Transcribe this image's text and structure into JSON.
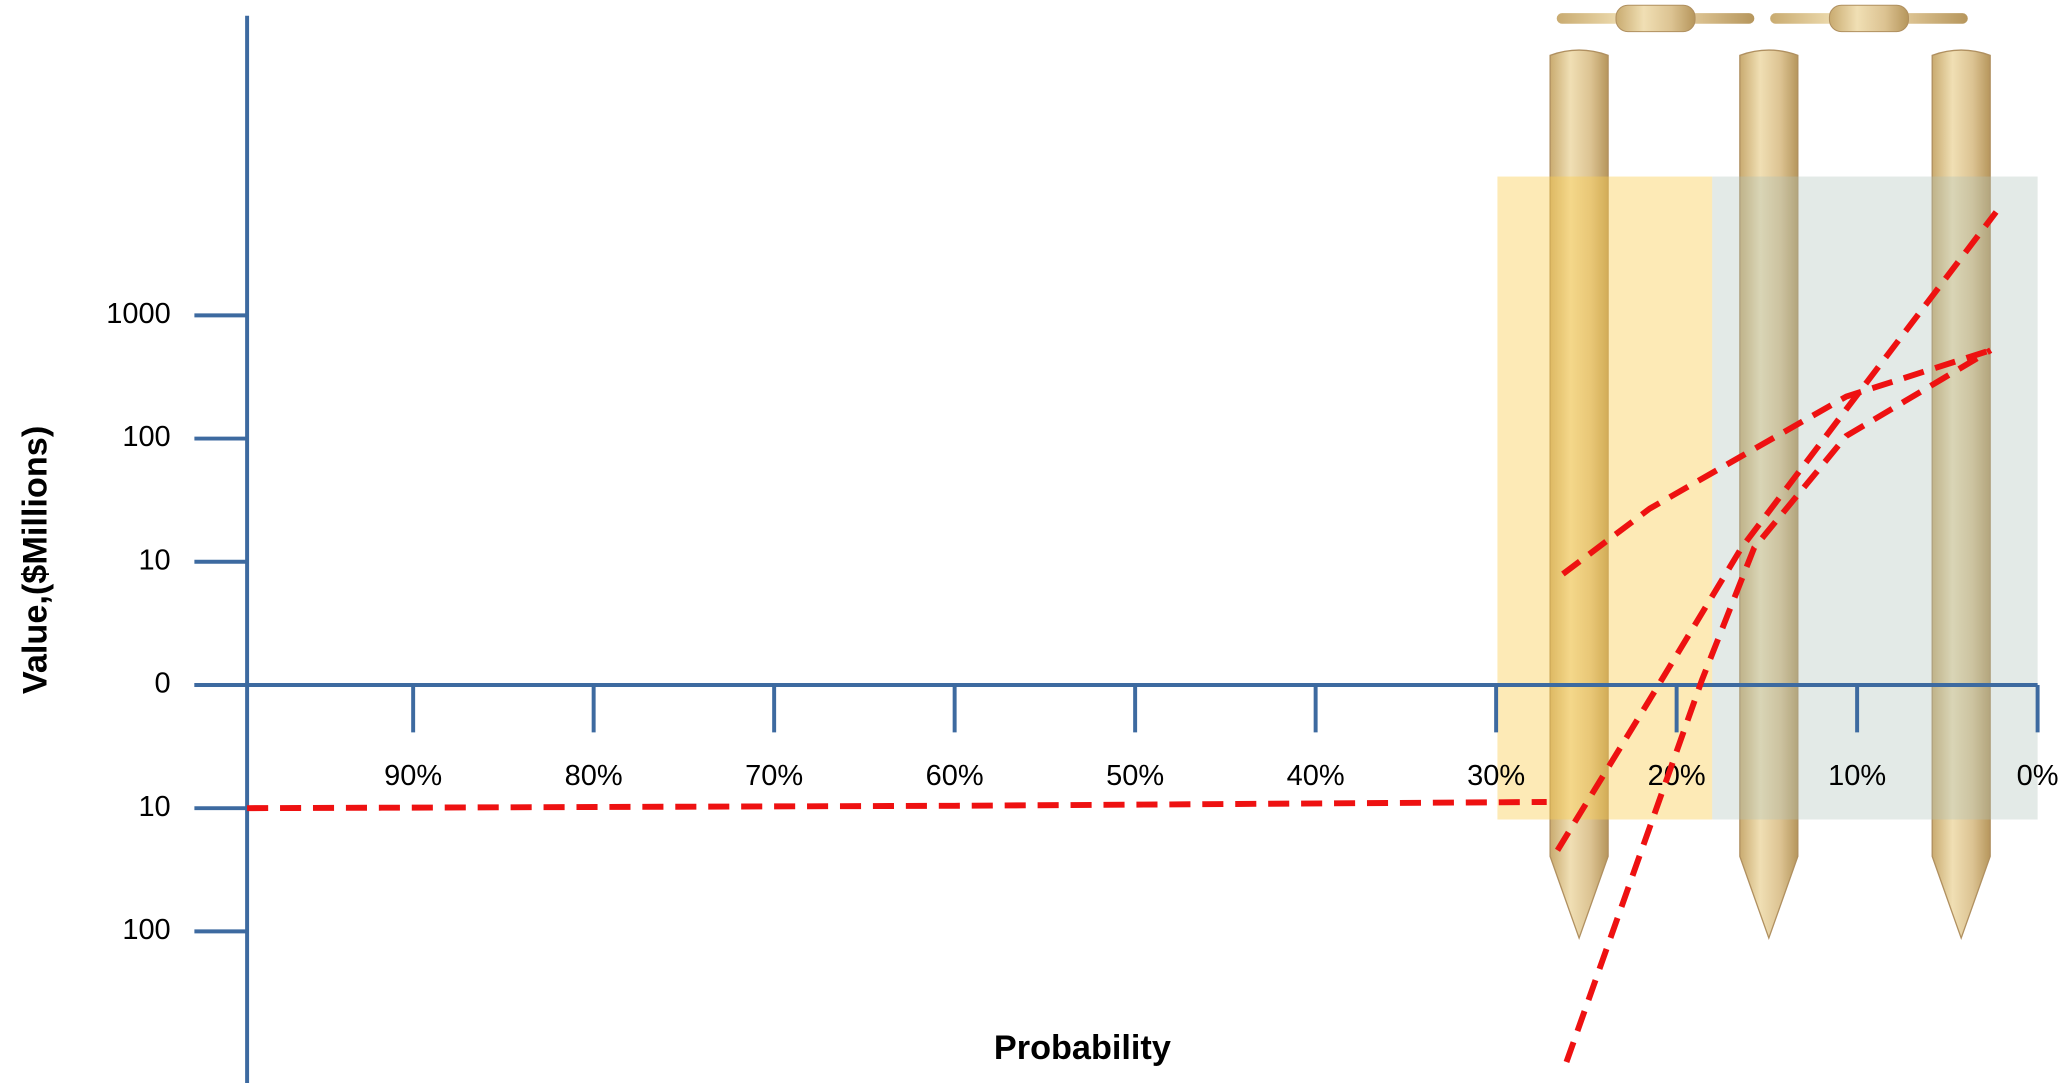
{
  "chart_data": {
    "type": "line",
    "x_label": "Probability",
    "y_label": "Value,($Millions)",
    "yscale": "symlog",
    "xlim": [
      99.2,
      0
    ],
    "xticks": [
      {
        "value": 90,
        "label": "90%"
      },
      {
        "value": 80,
        "label": "80%"
      },
      {
        "value": 70,
        "label": "70%"
      },
      {
        "value": 60,
        "label": "60%"
      },
      {
        "value": 50,
        "label": "50%"
      },
      {
        "value": 40,
        "label": "40%"
      },
      {
        "value": 30,
        "label": "30%"
      },
      {
        "value": 20,
        "label": "20%"
      },
      {
        "value": 10,
        "label": "10%"
      },
      {
        "value": 0,
        "label": "0%"
      }
    ],
    "ylim": [
      -1700,
      270000
    ],
    "yticks": [
      {
        "value": -100,
        "label": "100"
      },
      {
        "value": -10,
        "label": "10"
      },
      0,
      10,
      100,
      1000
    ],
    "axis_color": "#3d6aa0",
    "series": [
      {
        "color": "#ee1111",
        "x": [
          99.2,
          60,
          27.2
        ],
        "values": [
          -10,
          -9.8,
          -9.5
        ]
      },
      {
        "color": "#ee1111",
        "x": [
          26.3,
          21.5,
          16.4,
          10.6,
          2.6
        ],
        "values": [
          9,
          27,
          72,
          219,
          522
        ]
      },
      {
        "color": "#ee1111",
        "x": [
          26.6,
          21.5,
          16.4,
          10.6,
          2.3
        ],
        "values": [
          -22,
          -1.2,
          13,
          173,
          6900
        ]
      },
      {
        "color": "#ee1111",
        "x": [
          26.1,
          18.6,
          15.7,
          10.6,
          2.6
        ],
        "values": [
          -1150,
          0.4,
          13,
          105,
          522
        ]
      }
    ]
  }
}
